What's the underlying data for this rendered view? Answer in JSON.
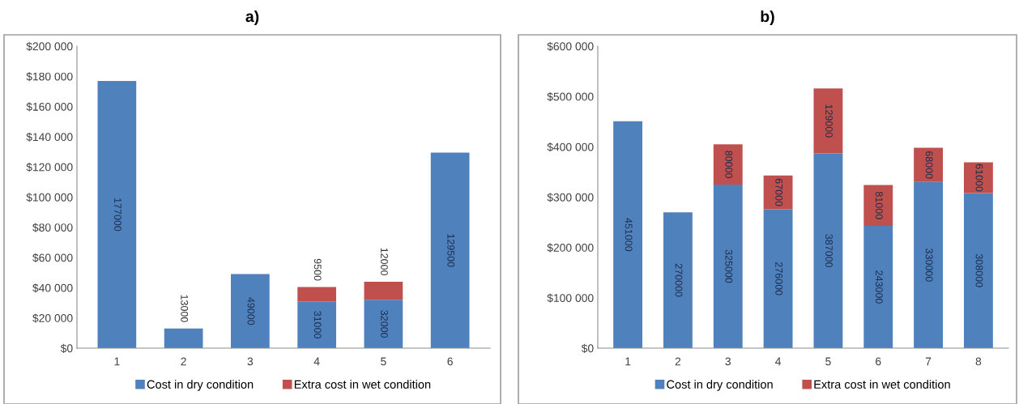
{
  "chart_data": [
    {
      "type": "bar",
      "title": "a)",
      "stacked": true,
      "categories": [
        "1",
        "2",
        "3",
        "4",
        "5",
        "6"
      ],
      "series": [
        {
          "name": "Cost in dry condition",
          "color": "#4f81bd",
          "values": [
            177000,
            13000,
            49000,
            31000,
            32000,
            129500
          ]
        },
        {
          "name": "Extra cost in wet condition",
          "color": "#c0504d",
          "values": [
            null,
            null,
            null,
            9500,
            12000,
            null
          ]
        }
      ],
      "ylim": [
        0,
        200000
      ],
      "yticks": [
        {
          "value": 0,
          "label": "$0"
        },
        {
          "value": 20000,
          "label": "$20 000"
        },
        {
          "value": 40000,
          "label": "$40 000"
        },
        {
          "value": 60000,
          "label": "$60 000"
        },
        {
          "value": 80000,
          "label": "$80 000"
        },
        {
          "value": 100000,
          "label": "$100 000"
        },
        {
          "value": 120000,
          "label": "$120 000"
        },
        {
          "value": 140000,
          "label": "$140 000"
        },
        {
          "value": 160000,
          "label": "$160 000"
        },
        {
          "value": 180000,
          "label": "$180 000"
        },
        {
          "value": 200000,
          "label": "$200 000"
        }
      ],
      "data_labels": true,
      "legend": "bottom",
      "grid": false
    },
    {
      "type": "bar",
      "title": "b)",
      "stacked": true,
      "categories": [
        "1",
        "2",
        "3",
        "4",
        "5",
        "6",
        "7",
        "8"
      ],
      "series": [
        {
          "name": "Cost in dry condition",
          "color": "#4f81bd",
          "values": [
            451000,
            270000,
            325000,
            276000,
            387000,
            243000,
            330000,
            308000
          ]
        },
        {
          "name": "Extra cost in wet condition",
          "color": "#c0504d",
          "values": [
            null,
            null,
            80000,
            67000,
            129000,
            81000,
            68000,
            61000
          ]
        }
      ],
      "ylim": [
        0,
        600000
      ],
      "yticks": [
        {
          "value": 0,
          "label": "$0"
        },
        {
          "value": 100000,
          "label": "$100 000"
        },
        {
          "value": 200000,
          "label": "$200 000"
        },
        {
          "value": 300000,
          "label": "$300 000"
        },
        {
          "value": 400000,
          "label": "$400 000"
        },
        {
          "value": 500000,
          "label": "$500 000"
        },
        {
          "value": 600000,
          "label": "$600 000"
        }
      ],
      "data_labels": true,
      "legend": "bottom",
      "grid": false
    }
  ]
}
